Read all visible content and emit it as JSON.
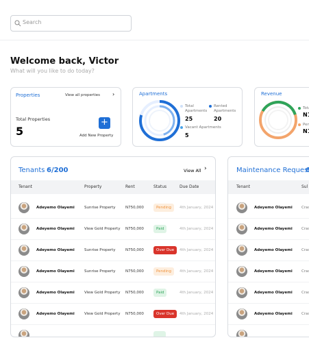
{
  "search": {
    "placeholder": "Search"
  },
  "welcome": {
    "title": "Welcome back, Victor",
    "subtitle": "What will you like to do today?"
  },
  "properties": {
    "title": "Properties",
    "link": "View all properties",
    "label": "Total Properties",
    "value": "5",
    "action": "Add New Property"
  },
  "apartments": {
    "title": "Apartments",
    "items": [
      {
        "label": "Total Apartments",
        "value": "25"
      },
      {
        "label": "Rented Apartments",
        "value": "20"
      },
      {
        "label": "Vacant Apartments",
        "value": "5"
      }
    ]
  },
  "revenue": {
    "title": "Revenue",
    "items": [
      {
        "label": "Tota",
        "value": "N1"
      },
      {
        "label": "Pen",
        "value": "N1."
      }
    ]
  },
  "tenants": {
    "title": "Tenants",
    "count": "6/200",
    "link": "View All",
    "columns": [
      "Tenant",
      "Property",
      "Rent",
      "Status",
      "Due Date"
    ],
    "rows": [
      [
        "Adeyemo Olayemi",
        "Sunrise Property",
        "N750,000",
        "Pending",
        "4th January, 2024"
      ],
      [
        "Adeyemo Olayemi",
        "View Gold Property",
        "N750,000",
        "Paid",
        "4th January, 2024"
      ],
      [
        "Adeyemo Olayemi",
        "Sunrise Property",
        "N750,000",
        "Over Due",
        "4th January, 2024"
      ],
      [
        "Adeyemo Olayemi",
        "Sunrise Property",
        "N750,000",
        "Pending",
        "4th January, 2024"
      ],
      [
        "Adeyemo Olayemi",
        "View Gold Property",
        "N750,000",
        "Paid",
        "4th January, 2024"
      ],
      [
        "Adeyemo Olayemi",
        "View Gold Property",
        "N750,000",
        "Over Due",
        "4th January, 2024"
      ]
    ]
  },
  "maintenance": {
    "title": "Maintenance Request",
    "count": "6",
    "columns": [
      "Tenant",
      "Sul"
    ],
    "rows": [
      [
        "Adeyemo Olayemi",
        "Crac"
      ],
      [
        "Adeyemo Olayemi",
        "Crac"
      ],
      [
        "Adeyemo Olayemi",
        "Crac"
      ],
      [
        "Adeyemo Olayemi",
        "Crac"
      ],
      [
        "Adeyemo Olayemi",
        "Crac"
      ],
      [
        "Adeyemo Olayemi",
        "Crac"
      ]
    ]
  }
}
